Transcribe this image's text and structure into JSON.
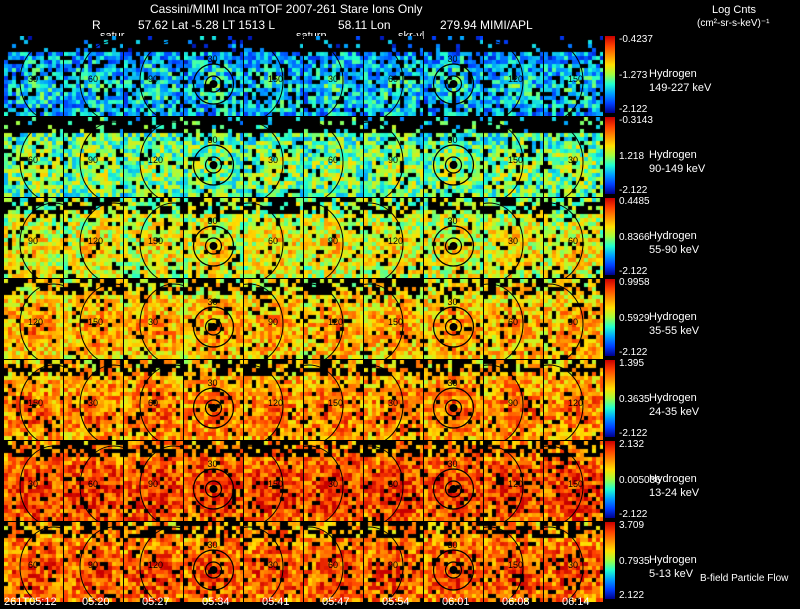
{
  "header": {
    "title": "Cassini/MIMI Inca mTOF  2007-261   Stare   Ions Only",
    "r_label": "R",
    "position": "57.62 Lat -5.28 LT 1513 L",
    "lon": "58.11 Lon",
    "lon_value": "279.94  MIMI/APL",
    "units_title": "Log Cnts",
    "units": "(cm²-sr-s-keV)⁻¹"
  },
  "panel_labels": [
    "satur",
    "saturn",
    "skr-vl"
  ],
  "bands": [
    {
      "species": "Hydrogen",
      "range": "149-227 keV",
      "max": "-0.4237",
      "mid": "-1.273",
      "min": "-2.122",
      "level": 0.15
    },
    {
      "species": "Hydrogen",
      "range": "90-149 keV",
      "max": "-0.3143",
      "mid": "1.218",
      "min": "-2.122",
      "level": 0.32
    },
    {
      "species": "Hydrogen",
      "range": "55-90 keV",
      "max": "0.4485",
      "mid": "0.8366",
      "min": "-2.122",
      "level": 0.45
    },
    {
      "species": "Hydrogen",
      "range": "35-55 keV",
      "max": "0.9958",
      "mid": "0.5929",
      "min": "-2.122",
      "level": 0.55
    },
    {
      "species": "Hydrogen",
      "range": "24-35 keV",
      "max": "1.395",
      "mid": "0.3635",
      "min": "-2.122",
      "level": 0.62
    },
    {
      "species": "Hydrogen",
      "range": "13-24 keV",
      "max": "2.132",
      "mid": "0.005036",
      "min": "-2.122",
      "level": 0.72
    },
    {
      "species": "Hydrogen",
      "range": "5-13 keV",
      "max": "3.709",
      "mid": "0.7935",
      "min": "2.122",
      "level": 0.68
    }
  ],
  "contour_labels": [
    "30",
    "60",
    "90",
    "120",
    "150"
  ],
  "time_ticks": [
    "261T05:12",
    "05:20",
    "05:27",
    "05:34",
    "05:41",
    "05:47",
    "05:54",
    "06:01",
    "06:08",
    "06:14"
  ],
  "footer_note": "B-field Particle Flow",
  "colors": {
    "background": "#000000",
    "text": "#ffffff",
    "contour": "#000000"
  }
}
